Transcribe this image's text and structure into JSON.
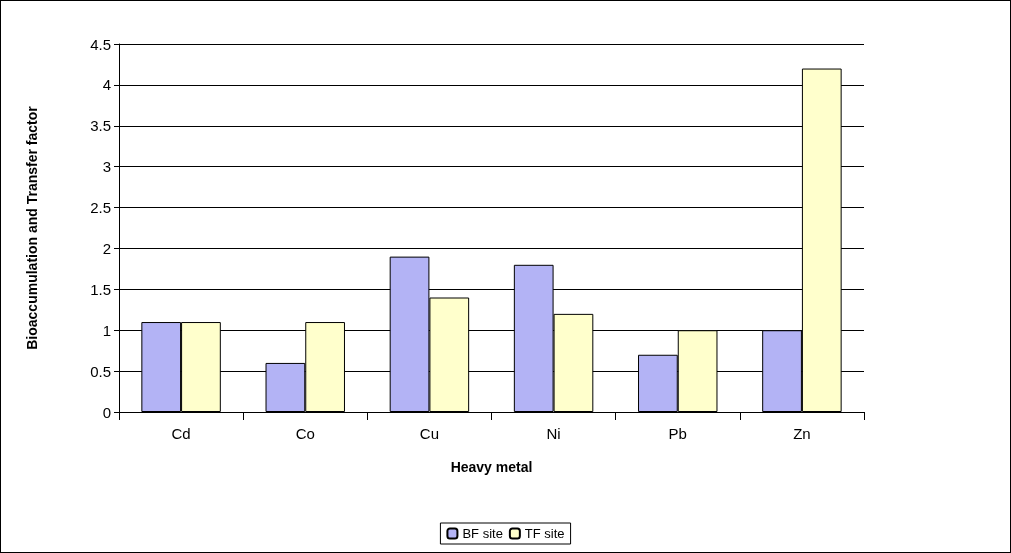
{
  "chart_data": {
    "type": "bar",
    "categories": [
      "Cd",
      "Co",
      "Cu",
      "Ni",
      "Pb",
      "Zn"
    ],
    "series": [
      {
        "name": "BF site",
        "color": "#b3b3f5",
        "values": [
          1.1,
          0.6,
          1.9,
          1.8,
          0.7,
          1.0
        ]
      },
      {
        "name": "TF site",
        "color": "#ffffcc",
        "values": [
          1.1,
          1.1,
          1.4,
          1.2,
          1.0,
          4.2
        ]
      }
    ],
    "xlabel": "Heavy metal",
    "ylabel": "Bioaccumulation and Transfer factor",
    "ylim": [
      0,
      4.5
    ],
    "yticks": [
      0,
      0.5,
      1,
      1.5,
      2,
      2.5,
      3,
      3.5,
      4,
      4.5
    ],
    "grid": "y",
    "legend": "bottom"
  }
}
